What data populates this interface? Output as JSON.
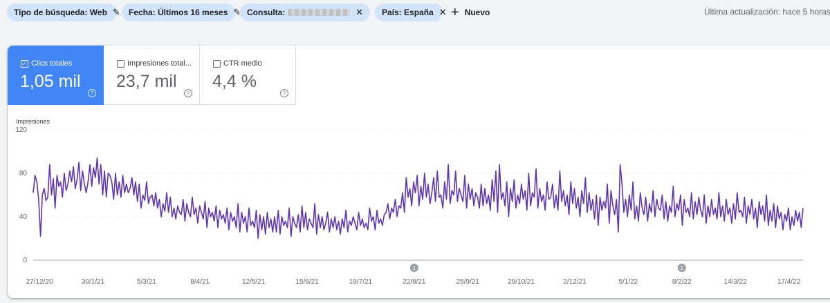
{
  "filters": {
    "chips": [
      {
        "label": "Tipo de búsqueda: Web",
        "icon": "pencil-icon",
        "glyph": "✎"
      },
      {
        "label": "Fecha: Últimos 16 meses",
        "icon": "pencil-icon",
        "glyph": "✎"
      },
      {
        "label": "Consulta:",
        "icon": "close-icon",
        "glyph": "✕"
      },
      {
        "label": "País: España",
        "icon": "close-icon",
        "glyph": "✕"
      }
    ],
    "new_label": "Nuevo",
    "updated": "Última actualización: hace 5 horas"
  },
  "metrics": [
    {
      "label": "Clics totales",
      "value": "1,05 mil",
      "active": true,
      "check": "✓"
    },
    {
      "label": "Impresiones total...",
      "value": "23,7 mil",
      "active": false,
      "check": ""
    },
    {
      "label": "CTR medio",
      "value": "4,4 %",
      "active": false,
      "check": ""
    }
  ],
  "help_glyph": "?",
  "colors": {
    "accent": "#4285f4",
    "line": "#5e35b1"
  },
  "chart_data": {
    "type": "line",
    "ylabel": "Impresiones",
    "ylim": [
      0,
      120
    ],
    "yticks": [
      0,
      40,
      80,
      120
    ],
    "xticks": [
      "27/12/20",
      "30/1/21",
      "5/3/21",
      "8/4/21",
      "12/5/21",
      "15/6/21",
      "19/7/21",
      "22/8/21",
      "25/9/21",
      "29/10/21",
      "2/12/21",
      "5/1/22",
      "8/2/22",
      "14/3/22",
      "17/4/22"
    ],
    "annotations": [
      {
        "date": "22/8/21",
        "label": "1"
      },
      {
        "date": "8/2/22",
        "label": "1"
      }
    ],
    "x_start": "2020-12-23",
    "x_end": "2022-04-26",
    "series": [
      {
        "values": [
          62,
          78,
          72,
          56,
          22,
          60,
          66,
          55,
          58,
          88,
          60,
          75,
          48,
          78,
          68,
          72,
          58,
          80,
          64,
          70,
          82,
          72,
          86,
          66,
          74,
          90,
          64,
          82,
          70,
          62,
          72,
          88,
          68,
          85,
          76,
          94,
          70,
          88,
          60,
          82,
          58,
          80,
          78,
          72,
          56,
          80,
          60,
          72,
          58,
          78,
          62,
          70,
          62,
          66,
          76,
          60,
          72,
          54,
          70,
          48,
          60,
          55,
          72,
          52,
          58,
          60,
          50,
          62,
          48,
          56,
          40,
          52,
          45,
          62,
          44,
          58,
          40,
          48,
          38,
          50,
          44,
          42,
          56,
          36,
          52,
          44,
          40,
          58,
          42,
          48,
          34,
          50,
          44,
          38,
          54,
          30,
          48,
          40,
          44,
          36,
          50,
          30,
          46,
          38,
          42,
          34,
          48,
          28,
          44,
          36,
          40,
          30,
          52,
          26,
          44,
          34,
          40,
          26,
          48,
          32,
          36,
          30,
          46,
          20,
          42,
          28,
          40,
          24,
          44,
          30,
          38,
          26,
          40,
          26,
          46,
          24,
          40,
          32,
          36,
          30,
          48,
          22,
          40,
          34,
          30,
          42,
          26,
          50,
          30,
          44,
          28,
          38,
          34,
          30,
          52,
          24,
          42,
          30,
          40,
          28,
          34,
          44,
          26,
          38,
          30,
          40,
          28,
          36,
          24,
          38,
          30,
          46,
          26,
          36,
          32,
          40,
          34,
          28,
          44,
          32,
          38,
          30,
          34,
          28,
          48,
          36,
          40,
          28,
          46,
          34,
          38,
          32,
          42,
          44,
          52,
          38,
          48,
          44,
          56,
          40,
          50,
          48,
          62,
          44,
          76,
          58,
          66,
          50,
          72,
          62,
          78,
          50,
          68,
          56,
          80,
          58,
          70,
          52,
          62,
          76,
          54,
          82,
          58,
          60,
          48,
          72,
          56,
          88,
          52,
          64,
          60,
          82,
          54,
          66,
          60,
          54,
          78,
          48,
          70,
          56,
          66,
          50,
          62,
          58,
          48,
          70,
          50,
          66,
          52,
          60,
          46,
          74,
          54,
          82,
          44,
          88,
          56,
          62,
          50,
          72,
          40,
          66,
          54,
          74,
          48,
          60,
          52,
          70,
          56,
          64,
          46,
          80,
          50,
          62,
          58,
          84,
          48,
          66,
          54,
          60,
          46,
          72,
          56,
          58,
          70,
          48,
          60,
          46,
          82,
          54,
          64,
          50,
          60,
          42,
          72,
          52,
          66,
          48,
          58,
          40,
          64,
          52,
          76,
          44,
          62,
          46,
          56,
          38,
          60,
          32,
          58,
          46,
          54,
          48,
          70,
          34,
          64,
          50,
          42,
          56,
          26,
          88,
          70,
          44,
          56,
          40,
          60,
          46,
          72,
          38,
          50,
          36,
          62,
          48,
          42,
          58,
          36,
          52,
          44,
          64,
          40,
          56,
          48,
          46,
          60,
          38,
          54,
          36,
          50,
          44,
          68,
          40,
          52,
          46,
          60,
          32,
          56,
          44,
          48,
          40,
          62,
          38,
          54,
          42,
          58,
          46,
          40,
          60,
          34,
          50,
          40,
          56,
          42,
          48,
          38,
          62,
          40,
          50,
          36,
          56,
          42,
          48,
          34,
          52,
          38,
          62,
          44,
          46,
          40,
          58,
          34,
          50,
          42,
          56,
          38,
          48,
          30,
          54,
          42,
          50,
          36,
          60,
          32,
          46,
          36,
          52,
          30,
          50,
          38,
          44,
          28,
          42,
          36,
          48,
          28,
          40,
          32,
          46,
          36,
          44,
          30,
          48
        ]
      }
    ]
  }
}
